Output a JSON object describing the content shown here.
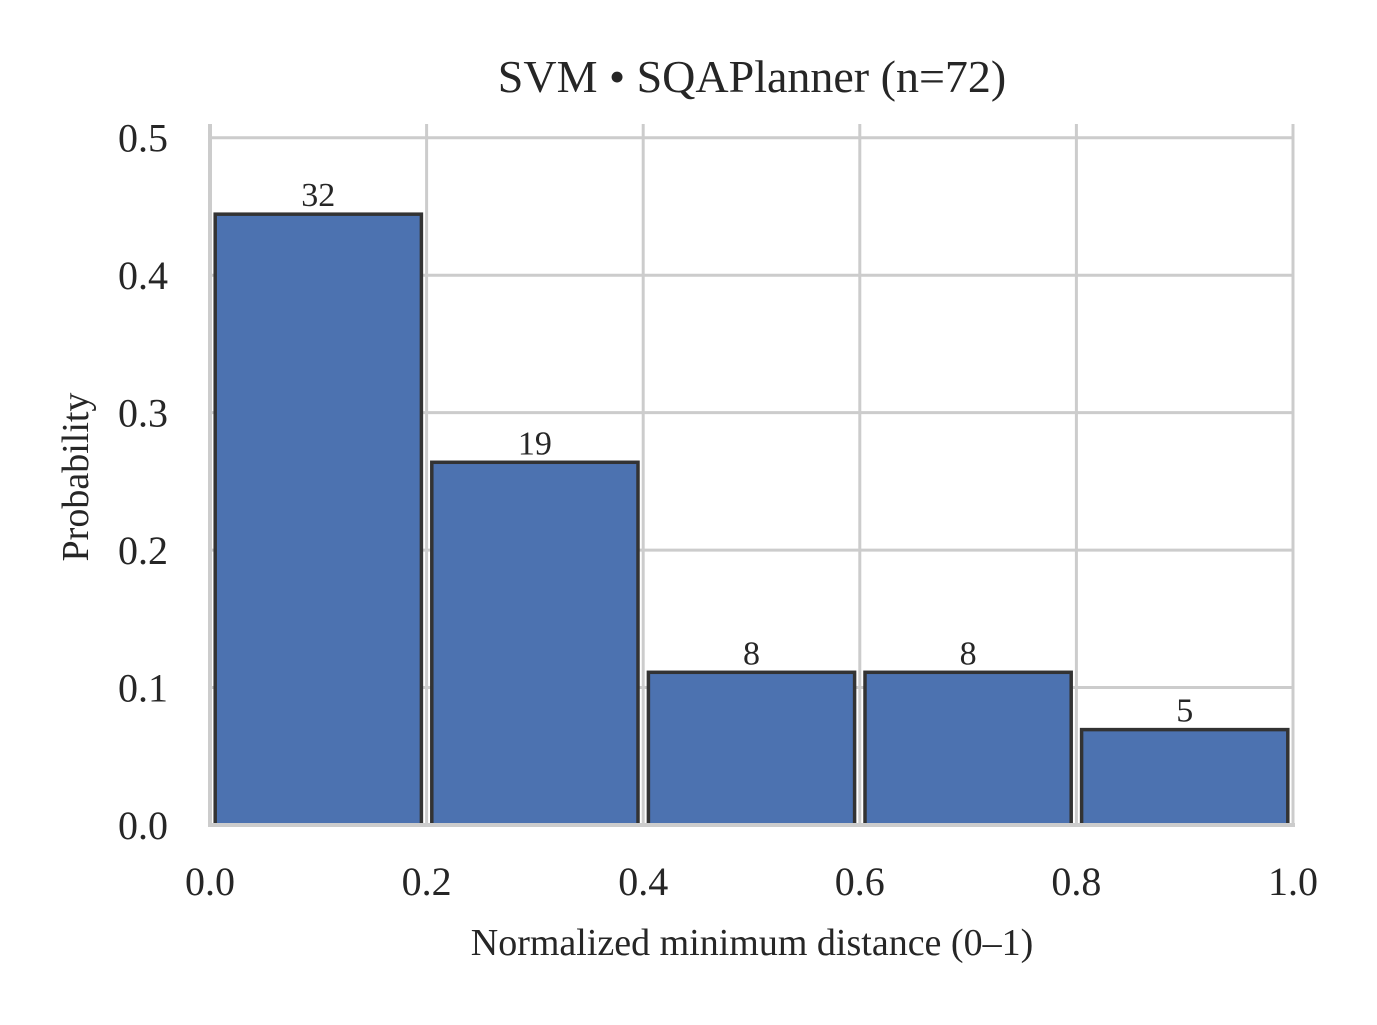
{
  "chart_data": {
    "type": "bar",
    "title": "SVM • SQAPlanner  (n=72)",
    "xlabel": "Normalized minimum distance (0–1)",
    "ylabel": "Probability",
    "bins": [
      {
        "start": 0.0,
        "end": 0.2,
        "value": 0.4444,
        "label": "32"
      },
      {
        "start": 0.2,
        "end": 0.4,
        "value": 0.2639,
        "label": "19"
      },
      {
        "start": 0.4,
        "end": 0.6,
        "value": 0.1111,
        "label": "8"
      },
      {
        "start": 0.6,
        "end": 0.8,
        "value": 0.1111,
        "label": "8"
      },
      {
        "start": 0.8,
        "end": 1.0,
        "value": 0.0694,
        "label": "5"
      }
    ],
    "xlim": [
      0.0,
      1.0
    ],
    "ylim": [
      0.0,
      0.51
    ],
    "x_ticks": [
      "0.0",
      "0.2",
      "0.4",
      "0.6",
      "0.8",
      "1.0"
    ],
    "y_ticks": [
      "0.0",
      "0.1",
      "0.2",
      "0.3",
      "0.4",
      "0.5"
    ],
    "grid": true,
    "bar_color": "#4c72b0",
    "edge_color": "#333333"
  }
}
